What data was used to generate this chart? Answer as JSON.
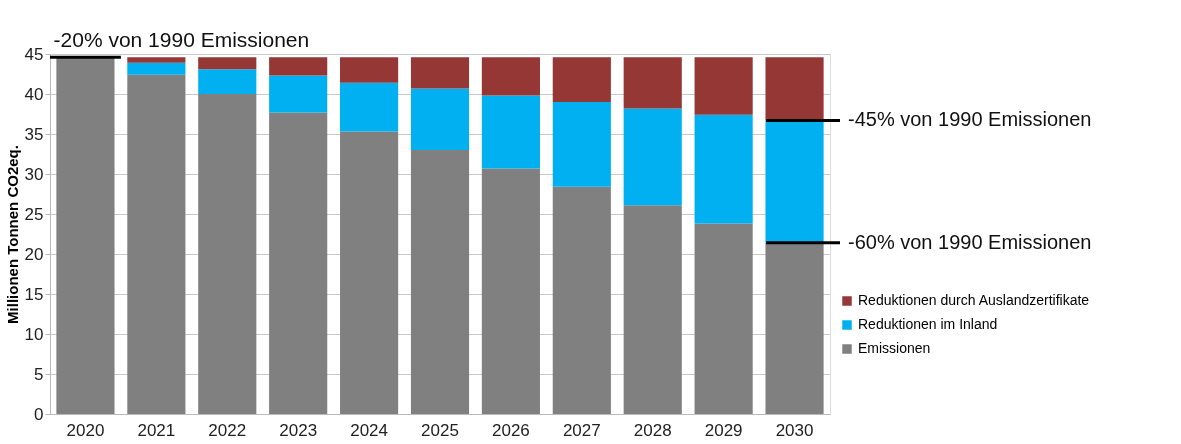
{
  "chart_data": {
    "type": "bar",
    "stacked": true,
    "ylabel": "Millionen Tonnen CO2eq.",
    "categories": [
      "2020",
      "2021",
      "2022",
      "2023",
      "2024",
      "2025",
      "2026",
      "2027",
      "2028",
      "2029",
      "2030"
    ],
    "series": [
      {
        "name": "Emissionen",
        "color": "#808080",
        "values": [
          44.6,
          42.4,
          40.0,
          37.7,
          35.3,
          33.0,
          30.7,
          28.4,
          26.1,
          23.8,
          21.4
        ]
      },
      {
        "name": "Reduktionen im Inland",
        "color": "#00b0f0",
        "values": [
          null,
          1.5,
          3.1,
          4.6,
          6.1,
          7.7,
          9.1,
          10.6,
          12.1,
          13.6,
          15.3
        ]
      },
      {
        "name": "Reduktionen durch Auslandzertifikate",
        "color": "#953735",
        "values": [
          null,
          0.7,
          1.5,
          2.3,
          3.2,
          3.9,
          4.8,
          5.6,
          6.4,
          7.2,
          7.9
        ]
      }
    ],
    "ylim": [
      0,
      45
    ],
    "yticks": [
      0,
      5,
      10,
      15,
      20,
      25,
      30,
      35,
      40,
      45
    ],
    "grid": "y",
    "legend": "right",
    "annotations": [
      {
        "text": "-20% von 1990 Emissionen",
        "x": "2020",
        "y": 44.6
      },
      {
        "text": "-45% von 1990 Emissionen",
        "x": "2030",
        "y": 36.7
      },
      {
        "text": "-60% von 1990 Emissionen",
        "x": "2030",
        "y": 21.4
      }
    ]
  }
}
